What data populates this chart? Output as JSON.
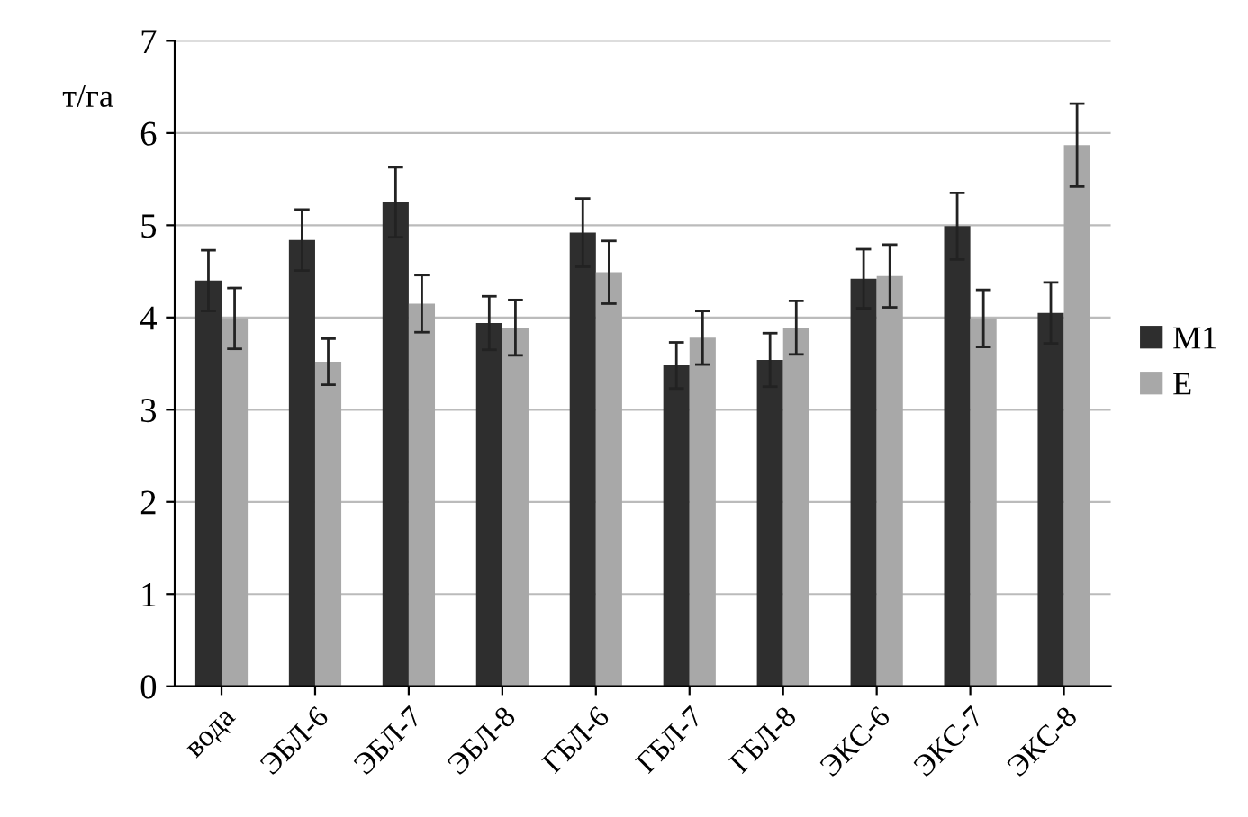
{
  "chart_data": {
    "type": "bar",
    "ylabel": "т/га",
    "categories": [
      "вода",
      "ЭБЛ-6",
      "ЭБЛ-7",
      "ЭБЛ-8",
      "ГБЛ-6",
      "ГБЛ-7",
      "ГБЛ-8",
      "ЭКС-6",
      "ЭКС-7",
      "ЭКС-8"
    ],
    "series": [
      {
        "name": "M1",
        "color": "#2e2e2e",
        "values": [
          4.4,
          4.84,
          5.25,
          3.94,
          4.92,
          3.48,
          3.54,
          4.42,
          4.99,
          4.05
        ],
        "errors": [
          0.33,
          0.33,
          0.38,
          0.29,
          0.37,
          0.25,
          0.29,
          0.32,
          0.36,
          0.33
        ]
      },
      {
        "name": "E",
        "color": "#a8a8a8",
        "values": [
          3.99,
          3.52,
          4.15,
          3.89,
          4.49,
          3.78,
          3.89,
          4.45,
          3.99,
          5.87
        ],
        "errors": [
          0.33,
          0.25,
          0.31,
          0.3,
          0.34,
          0.29,
          0.29,
          0.34,
          0.31,
          0.45
        ]
      }
    ],
    "ylim": [
      0,
      7
    ],
    "yticks": [
      0,
      1,
      2,
      3,
      4,
      5,
      6,
      7
    ],
    "grid": "y",
    "legend": "right"
  }
}
